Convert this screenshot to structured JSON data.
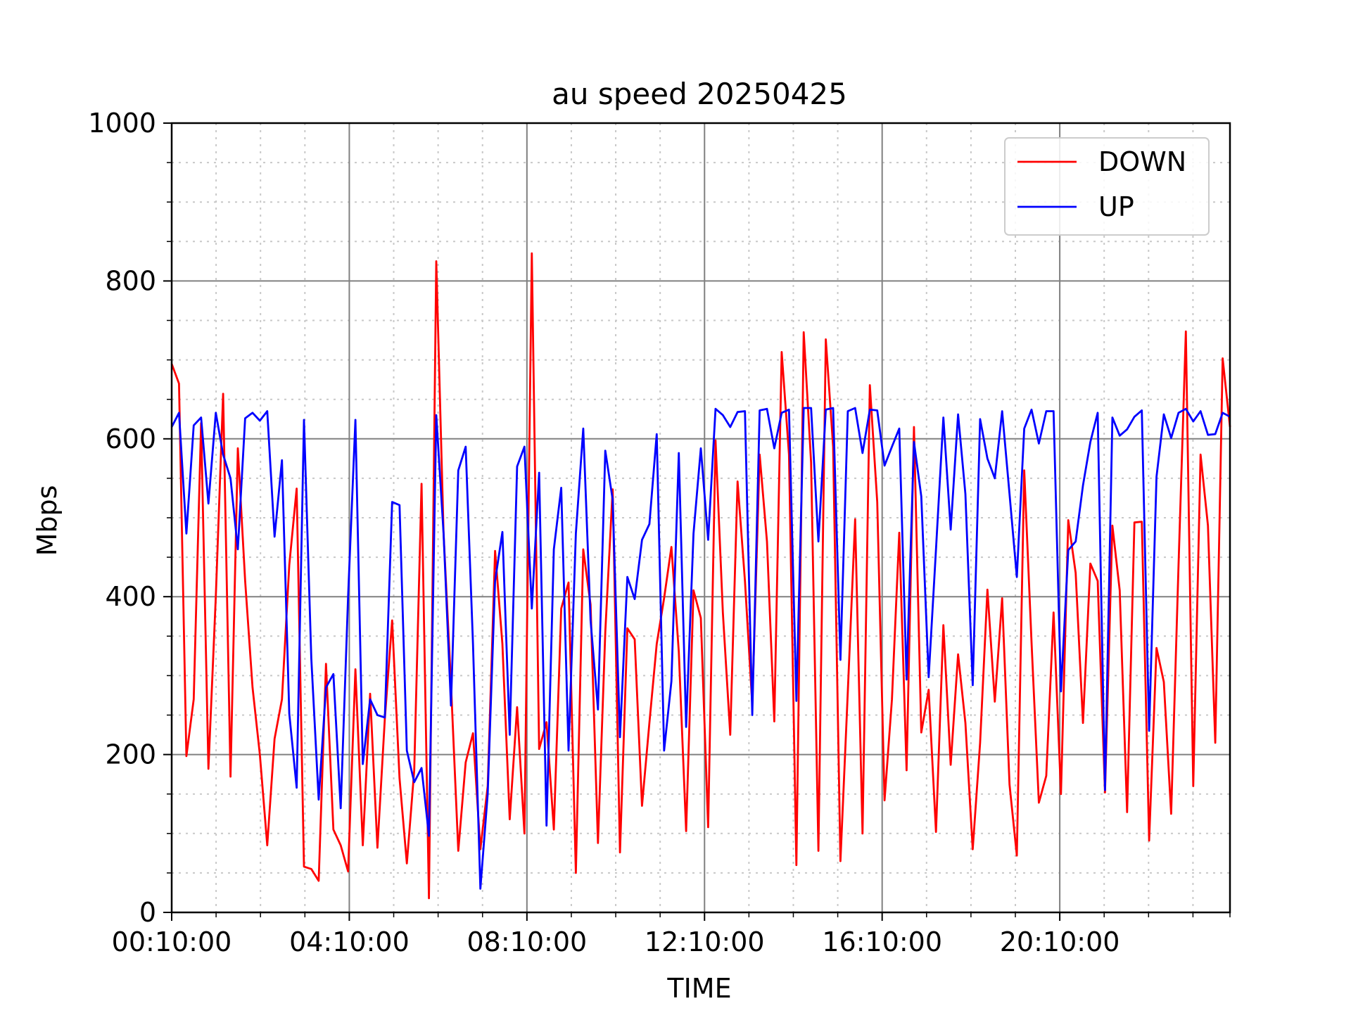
{
  "chart_data": {
    "type": "line",
    "title": "au speed 20250425",
    "xlabel": "TIME",
    "ylabel": "Mbps",
    "ylim": [
      0,
      1000
    ],
    "xlim_hours": [
      0.1667,
      24.0
    ],
    "x_ticks": [
      {
        "hours": 0.1667,
        "label": "00:10:00"
      },
      {
        "hours": 4.1667,
        "label": "04:10:00"
      },
      {
        "hours": 8.1667,
        "label": "08:10:00"
      },
      {
        "hours": 12.1667,
        "label": "12:10:00"
      },
      {
        "hours": 16.1667,
        "label": "16:10:00"
      },
      {
        "hours": 20.1667,
        "label": "20:10:00"
      }
    ],
    "y_ticks": [
      0,
      200,
      400,
      600,
      800,
      1000
    ],
    "grid": true,
    "legend": "top-right",
    "series": [
      {
        "name": "DOWN",
        "color": "#ff0000",
        "values": [
          695,
          670,
          198,
          270,
          620,
          182,
          400,
          657,
          172,
          588,
          420,
          285,
          200,
          85,
          220,
          270,
          440,
          537,
          58,
          55,
          40,
          315,
          105,
          85,
          52,
          308,
          85,
          277,
          82,
          245,
          370,
          170,
          62,
          180,
          543,
          18,
          825,
          480,
          290,
          78,
          190,
          227,
          80,
          160,
          458,
          340,
          118,
          260,
          100,
          835,
          207,
          241,
          105,
          385,
          418,
          50,
          460,
          390,
          88,
          355,
          536,
          76,
          360,
          346,
          135,
          240,
          340,
          398,
          463,
          330,
          103,
          408,
          373,
          108,
          598,
          380,
          225,
          546,
          420,
          263,
          580,
          470,
          242,
          710,
          580,
          60,
          735,
          570,
          78,
          726,
          590,
          65,
          280,
          498,
          100,
          668,
          520,
          142,
          270,
          481,
          180,
          615,
          228,
          282,
          102,
          364,
          187,
          327,
          240,
          80,
          215,
          409,
          267,
          398,
          162,
          72,
          560,
          342,
          139,
          173,
          380,
          150,
          497,
          430,
          240,
          442,
          420,
          152,
          490,
          408,
          127,
          494,
          495,
          91,
          335,
          292,
          125,
          440,
          736,
          160,
          580,
          490,
          215,
          702,
          615
        ]
      },
      {
        "name": "UP",
        "color": "#0000ff",
        "values": [
          615,
          633,
          480,
          617,
          627,
          518,
          633,
          580,
          550,
          460,
          626,
          633,
          623,
          635,
          476,
          573,
          252,
          158,
          624,
          322,
          143,
          285,
          302,
          132,
          400,
          624,
          188,
          270,
          250,
          247,
          520,
          516,
          205,
          165,
          183,
          97,
          630,
          480,
          262,
          560,
          590,
          340,
          30,
          150,
          420,
          482,
          225,
          565,
          590,
          385,
          557,
          110,
          460,
          538,
          205,
          480,
          613,
          370,
          257,
          585,
          523,
          222,
          425,
          397,
          472,
          492,
          606,
          205,
          293,
          582,
          235,
          480,
          588,
          472,
          638,
          630,
          615,
          634,
          635,
          250,
          636,
          638,
          588,
          633,
          637,
          268,
          639,
          639,
          470,
          637,
          639,
          320,
          635,
          639,
          582,
          637,
          636,
          566,
          590,
          613,
          295,
          596,
          527,
          298,
          460,
          627,
          485,
          631,
          530,
          288,
          625,
          575,
          550,
          635,
          530,
          425,
          613,
          637,
          594,
          635,
          635,
          280,
          459,
          470,
          541,
          596,
          633,
          155,
          627,
          604,
          612,
          628,
          636,
          230,
          552,
          631,
          601,
          633,
          638,
          622,
          635,
          605,
          606,
          633,
          628
        ]
      }
    ]
  }
}
